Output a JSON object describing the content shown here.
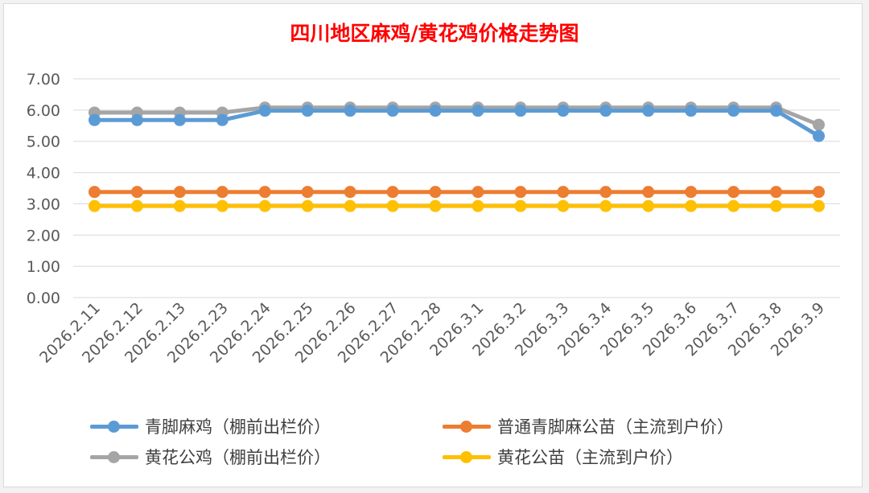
{
  "chart_data": {
    "type": "line",
    "title": "四川地区麻鸡/黄花鸡价格走势图",
    "categories": [
      "2026.2.11",
      "2026.2.12",
      "2026.2.13",
      "2026.2.23",
      "2026.2.24",
      "2026.2.25",
      "2026.2.26",
      "2026.2.27",
      "2026.2.28",
      "2026.3.1",
      "2026.3.2",
      "2026.3.3",
      "2026.3.4",
      "2026.3.5",
      "2026.3.6",
      "2026.3.7",
      "2026.3.8",
      "2026.3.9"
    ],
    "series": [
      {
        "name": "青脚麻鸡（棚前出栏价）",
        "color": "#5b9bd5",
        "values": [
          5.68,
          5.68,
          5.68,
          5.68,
          5.98,
          5.98,
          5.98,
          5.98,
          5.98,
          5.98,
          5.98,
          5.98,
          5.98,
          5.98,
          5.98,
          5.98,
          5.98,
          5.17
        ]
      },
      {
        "name": "普通青脚麻公苗（主流到户价）",
        "color": "#ed7d31",
        "values": [
          3.38,
          3.38,
          3.38,
          3.38,
          3.38,
          3.38,
          3.38,
          3.38,
          3.38,
          3.38,
          3.38,
          3.38,
          3.38,
          3.38,
          3.38,
          3.38,
          3.38,
          3.38
        ]
      },
      {
        "name": "黄花公鸡（棚前出栏价）",
        "color": "#a5a5a5",
        "values": [
          5.92,
          5.92,
          5.92,
          5.92,
          6.08,
          6.08,
          6.08,
          6.08,
          6.08,
          6.08,
          6.08,
          6.08,
          6.08,
          6.08,
          6.08,
          6.08,
          6.08,
          5.53
        ]
      },
      {
        "name": "黄花公苗（主流到户价）",
        "color": "#ffc000",
        "values": [
          2.93,
          2.93,
          2.93,
          2.93,
          2.93,
          2.93,
          2.93,
          2.93,
          2.93,
          2.93,
          2.93,
          2.93,
          2.93,
          2.93,
          2.93,
          2.93,
          2.93,
          2.93
        ]
      }
    ],
    "draw_order": [
      2,
      0,
      1,
      3
    ],
    "yticks": [
      "0.00",
      "1.00",
      "2.00",
      "3.00",
      "4.00",
      "5.00",
      "6.00",
      "7.00"
    ],
    "ylim": [
      0,
      7
    ],
    "grid": true,
    "legend": "bottom"
  }
}
